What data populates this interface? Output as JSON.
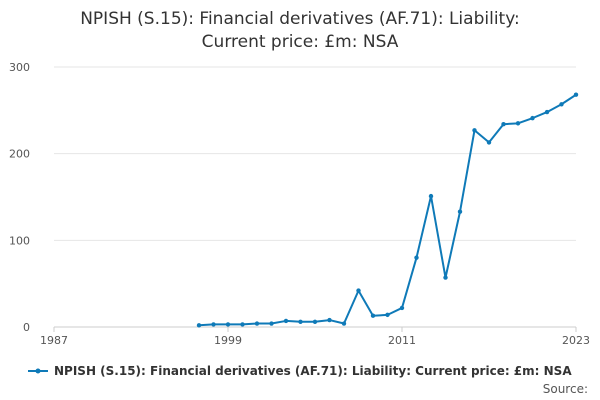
{
  "chart_data": {
    "type": "line",
    "title_lines": [
      "NPISH (S.15): Financial derivatives (AF.71): Liability:",
      "Current price: £m: NSA"
    ],
    "x_ticks": [
      "1987",
      "1999",
      "2011",
      "2023"
    ],
    "y_ticks": [
      "0",
      "100",
      "200",
      "300"
    ],
    "xlim": [
      1987,
      2023
    ],
    "ylim": [
      0,
      300
    ],
    "grid": true,
    "legend_position": "bottom",
    "series": [
      {
        "name": "NPISH (S.15): Financial derivatives (AF.71): Liability: Current price: £m: NSA",
        "color": "#0f7ab8",
        "x": [
          1997,
          1998,
          1999,
          2000,
          2001,
          2002,
          2003,
          2004,
          2005,
          2006,
          2007,
          2008,
          2009,
          2010,
          2011,
          2012,
          2013,
          2014,
          2015,
          2016,
          2017,
          2018,
          2019,
          2020,
          2021,
          2022,
          2023
        ],
        "y": [
          2,
          3,
          3,
          3,
          4,
          4,
          7,
          6,
          6,
          8,
          4,
          42,
          13,
          14,
          22,
          80,
          151,
          57,
          133,
          227,
          213,
          234,
          235,
          241,
          248,
          257,
          268
        ]
      }
    ],
    "source_label": "Source:"
  }
}
